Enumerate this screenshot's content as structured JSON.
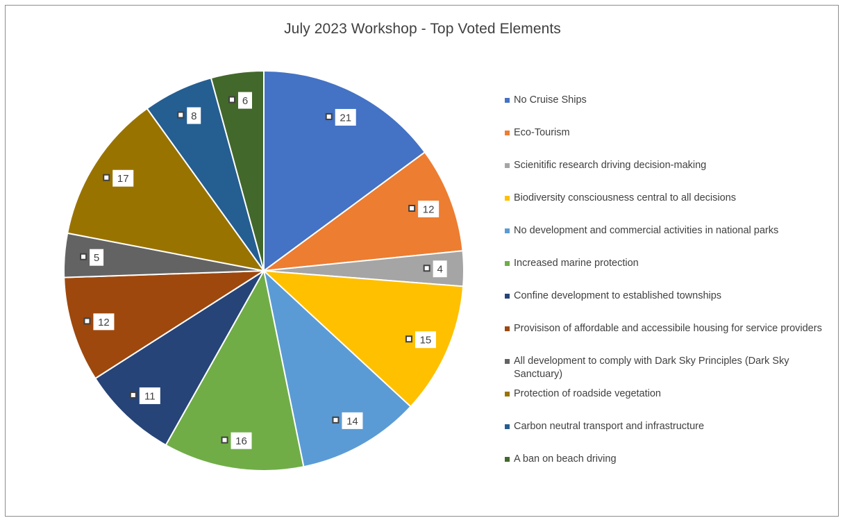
{
  "chart_data": {
    "type": "pie",
    "title": "July 2023 Workshop - Top Voted Elements",
    "categories": [
      "No Cruise Ships",
      "Eco-Tourism",
      "Scienitific research driving decision-making",
      "Biodiversity consciousness central to all decisions",
      "No development and commercial activities in national parks",
      "Increased marine protection",
      "Confine development to established townships",
      "Provisison of affordable and accessibile housing for service providers",
      "All development to comply with Dark Sky Principles (Dark Sky Sanctuary)",
      "Protection of roadside vegetation",
      "Carbon neutral transport and infrastructure",
      "A ban on beach driving"
    ],
    "values": [
      21,
      12,
      4,
      15,
      14,
      16,
      11,
      12,
      5,
      17,
      8,
      6
    ],
    "colors": [
      "#4472C4",
      "#ED7D31",
      "#A5A5A5",
      "#FFC000",
      "#5B9BD5",
      "#70AD47",
      "#264478",
      "#9E480E",
      "#636363",
      "#997300",
      "#255E91",
      "#43682B"
    ],
    "legend_position": "right",
    "data_labels": true
  }
}
